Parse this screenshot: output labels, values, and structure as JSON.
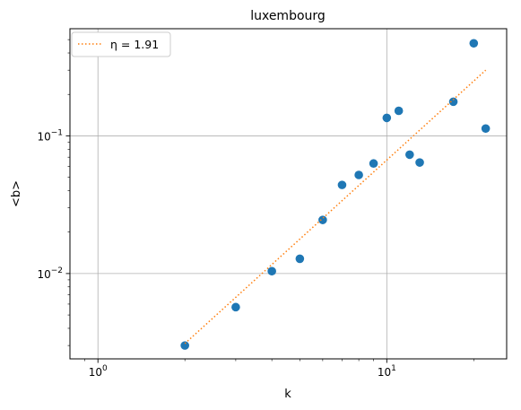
{
  "chart_data": {
    "type": "scatter",
    "title": "luxembourg",
    "xlabel": "k",
    "ylabel": "<b>",
    "xscale": "log",
    "yscale": "log",
    "xlim": [
      0.8,
      26
    ],
    "ylim": [
      0.0024,
      0.6
    ],
    "grid": true,
    "legend_position": "top-left",
    "x_ticks": [
      {
        "value": 1,
        "base": "10",
        "exp": "0"
      },
      {
        "value": 10,
        "base": "10",
        "exp": "1"
      }
    ],
    "y_ticks": [
      {
        "value": 0.01,
        "base": "10",
        "exp": "−2"
      },
      {
        "value": 0.1,
        "base": "10",
        "exp": "−1"
      }
    ],
    "series": [
      {
        "kind": "scatter",
        "color": "#1f77b4",
        "x": [
          2,
          3,
          4,
          5,
          6,
          7,
          8,
          9,
          10,
          11,
          12,
          13,
          17,
          20,
          22
        ],
        "y": [
          0.003,
          0.0057,
          0.0104,
          0.0128,
          0.0245,
          0.044,
          0.052,
          0.063,
          0.135,
          0.152,
          0.073,
          0.064,
          0.177,
          0.47,
          0.113
        ]
      },
      {
        "kind": "line",
        "name": "η = 1.91",
        "style": "dotted",
        "color": "#ff7f0e",
        "x": [
          2,
          22
        ],
        "y": [
          0.0031,
          0.3
        ]
      }
    ]
  }
}
